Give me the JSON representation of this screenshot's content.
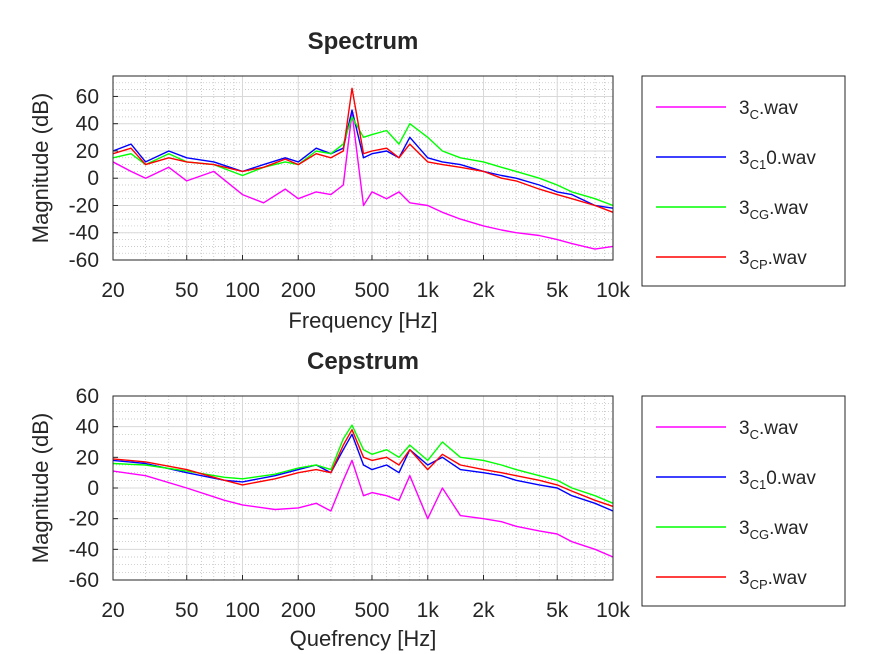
{
  "chart_data": [
    {
      "type": "line",
      "title": "Spectrum",
      "xlabel": "Frequency [Hz]",
      "ylabel": "Magnitude (dB)",
      "xscale": "log",
      "xlim": [
        20,
        10000
      ],
      "ylim": [
        -60,
        75
      ],
      "grid": true,
      "legend_position": "right",
      "x_ticks": [
        {
          "value": 20,
          "label": "20"
        },
        {
          "value": 50,
          "label": "50"
        },
        {
          "value": 100,
          "label": "100"
        },
        {
          "value": 200,
          "label": "200"
        },
        {
          "value": 500,
          "label": "500"
        },
        {
          "value": 1000,
          "label": "1k"
        },
        {
          "value": 2000,
          "label": "2k"
        },
        {
          "value": 5000,
          "label": "5k"
        },
        {
          "value": 10000,
          "label": "10k"
        }
      ],
      "y_ticks": [
        {
          "value": 60,
          "label": "60"
        },
        {
          "value": 40,
          "label": "40"
        },
        {
          "value": 20,
          "label": "20"
        },
        {
          "value": 0,
          "label": "0"
        },
        {
          "value": -20,
          "label": "-20"
        },
        {
          "value": -40,
          "label": "-40"
        },
        {
          "value": -60,
          "label": "-60"
        }
      ],
      "series": [
        {
          "name": "3C.wav",
          "label_base": "3",
          "label_sub": "C",
          "label_suffix": ".wav",
          "color": "#ff00ff",
          "x": [
            20,
            25,
            30,
            40,
            50,
            70,
            100,
            130,
            170,
            200,
            250,
            300,
            350,
            390,
            450,
            500,
            600,
            700,
            800,
            1000,
            1200,
            1500,
            2000,
            2500,
            3000,
            4000,
            5000,
            6000,
            8000,
            10000
          ],
          "y": [
            12,
            5,
            0,
            8,
            -2,
            5,
            -12,
            -18,
            -8,
            -15,
            -10,
            -12,
            -5,
            48,
            -20,
            -10,
            -15,
            -10,
            -18,
            -20,
            -25,
            -30,
            -35,
            -38,
            -40,
            -42,
            -45,
            -48,
            -52,
            -50
          ]
        },
        {
          "name": "3C10.wav",
          "label_base": "3",
          "label_sub": "C1",
          "label_suffix": "0.wav",
          "color": "#0000ff",
          "x": [
            20,
            25,
            30,
            40,
            50,
            70,
            100,
            130,
            170,
            200,
            250,
            300,
            350,
            390,
            450,
            500,
            600,
            700,
            800,
            1000,
            1200,
            1500,
            2000,
            2500,
            3000,
            4000,
            5000,
            6000,
            8000,
            10000
          ],
          "y": [
            20,
            25,
            12,
            20,
            15,
            12,
            5,
            10,
            15,
            12,
            22,
            18,
            22,
            50,
            15,
            18,
            20,
            15,
            30,
            15,
            12,
            10,
            5,
            2,
            0,
            -5,
            -10,
            -12,
            -20,
            -22
          ]
        },
        {
          "name": "3CG.wav",
          "label_base": "3",
          "label_sub": "CG",
          "label_suffix": ".wav",
          "color": "#00ff00",
          "x": [
            20,
            25,
            30,
            40,
            50,
            70,
            100,
            130,
            170,
            200,
            250,
            300,
            350,
            390,
            450,
            500,
            600,
            700,
            800,
            1000,
            1200,
            1500,
            2000,
            2500,
            3000,
            4000,
            5000,
            6000,
            8000,
            10000
          ],
          "y": [
            15,
            18,
            10,
            18,
            12,
            10,
            2,
            8,
            12,
            10,
            20,
            18,
            25,
            45,
            30,
            32,
            35,
            25,
            40,
            30,
            20,
            15,
            12,
            8,
            5,
            0,
            -5,
            -10,
            -15,
            -20
          ]
        },
        {
          "name": "3CP.wav",
          "label_base": "3",
          "label_sub": "CP",
          "label_suffix": ".wav",
          "color": "#ff0000",
          "x": [
            20,
            25,
            30,
            40,
            50,
            70,
            100,
            130,
            170,
            200,
            250,
            300,
            350,
            390,
            450,
            500,
            600,
            700,
            800,
            1000,
            1200,
            1500,
            2000,
            2500,
            3000,
            4000,
            5000,
            6000,
            8000,
            10000
          ],
          "y": [
            18,
            22,
            10,
            15,
            12,
            10,
            5,
            8,
            14,
            10,
            18,
            15,
            20,
            66,
            18,
            20,
            22,
            15,
            25,
            12,
            10,
            8,
            5,
            0,
            -2,
            -8,
            -12,
            -15,
            -20,
            -25
          ]
        }
      ]
    },
    {
      "type": "line",
      "title": "Cepstrum",
      "xlabel": "Quefrency [Hz]",
      "ylabel": "Magnitude (dB)",
      "xscale": "log",
      "xlim": [
        20,
        10000
      ],
      "ylim": [
        -60,
        60
      ],
      "grid": true,
      "legend_position": "right",
      "x_ticks": [
        {
          "value": 20,
          "label": "20"
        },
        {
          "value": 50,
          "label": "50"
        },
        {
          "value": 100,
          "label": "100"
        },
        {
          "value": 200,
          "label": "200"
        },
        {
          "value": 500,
          "label": "500"
        },
        {
          "value": 1000,
          "label": "1k"
        },
        {
          "value": 2000,
          "label": "2k"
        },
        {
          "value": 5000,
          "label": "5k"
        },
        {
          "value": 10000,
          "label": "10k"
        }
      ],
      "y_ticks": [
        {
          "value": 60,
          "label": "60"
        },
        {
          "value": 40,
          "label": "40"
        },
        {
          "value": 20,
          "label": "20"
        },
        {
          "value": 0,
          "label": "0"
        },
        {
          "value": -20,
          "label": "-20"
        },
        {
          "value": -40,
          "label": "-40"
        },
        {
          "value": -60,
          "label": "-60"
        }
      ],
      "series": [
        {
          "name": "3C.wav",
          "label_base": "3",
          "label_sub": "C",
          "label_suffix": ".wav",
          "color": "#ff00ff",
          "x": [
            20,
            30,
            50,
            80,
            100,
            150,
            200,
            250,
            300,
            350,
            390,
            450,
            500,
            600,
            700,
            800,
            1000,
            1200,
            1500,
            2000,
            2500,
            3000,
            4000,
            5000,
            6000,
            8000,
            10000
          ],
          "y": [
            11,
            8,
            0,
            -8,
            -11,
            -14,
            -13,
            -10,
            -15,
            5,
            18,
            -5,
            -3,
            -5,
            -8,
            8,
            -20,
            0,
            -18,
            -20,
            -22,
            -25,
            -28,
            -30,
            -35,
            -40,
            -45
          ]
        },
        {
          "name": "3C10.wav",
          "label_base": "3",
          "label_sub": "C1",
          "label_suffix": "0.wav",
          "color": "#0000ff",
          "x": [
            20,
            30,
            50,
            80,
            100,
            150,
            200,
            250,
            300,
            350,
            390,
            450,
            500,
            600,
            700,
            800,
            1000,
            1200,
            1500,
            2000,
            2500,
            3000,
            4000,
            5000,
            6000,
            8000,
            10000
          ],
          "y": [
            18,
            16,
            10,
            5,
            4,
            8,
            12,
            15,
            10,
            25,
            35,
            15,
            12,
            15,
            10,
            25,
            15,
            20,
            12,
            10,
            8,
            5,
            2,
            0,
            -5,
            -10,
            -15
          ]
        },
        {
          "name": "3CG.wav",
          "label_base": "3",
          "label_sub": "CG",
          "label_suffix": ".wav",
          "color": "#00ff00",
          "x": [
            20,
            30,
            50,
            80,
            100,
            150,
            200,
            250,
            300,
            350,
            390,
            450,
            500,
            600,
            700,
            800,
            1000,
            1200,
            1500,
            2000,
            2500,
            3000,
            4000,
            5000,
            6000,
            8000,
            10000
          ],
          "y": [
            16,
            15,
            11,
            7,
            6,
            9,
            13,
            15,
            12,
            32,
            41,
            25,
            22,
            25,
            20,
            28,
            18,
            30,
            20,
            18,
            15,
            12,
            8,
            5,
            0,
            -5,
            -10
          ]
        },
        {
          "name": "3CP.wav",
          "label_base": "3",
          "label_sub": "CP",
          "label_suffix": ".wav",
          "color": "#ff0000",
          "x": [
            20,
            30,
            50,
            80,
            100,
            150,
            200,
            250,
            300,
            350,
            390,
            450,
            500,
            600,
            700,
            800,
            1000,
            1200,
            1500,
            2000,
            2500,
            3000,
            4000,
            5000,
            6000,
            8000,
            10000
          ],
          "y": [
            19,
            17,
            12,
            5,
            2,
            6,
            10,
            12,
            10,
            28,
            38,
            20,
            18,
            20,
            15,
            25,
            12,
            22,
            15,
            12,
            10,
            8,
            5,
            2,
            -2,
            -8,
            -12
          ]
        }
      ]
    }
  ]
}
